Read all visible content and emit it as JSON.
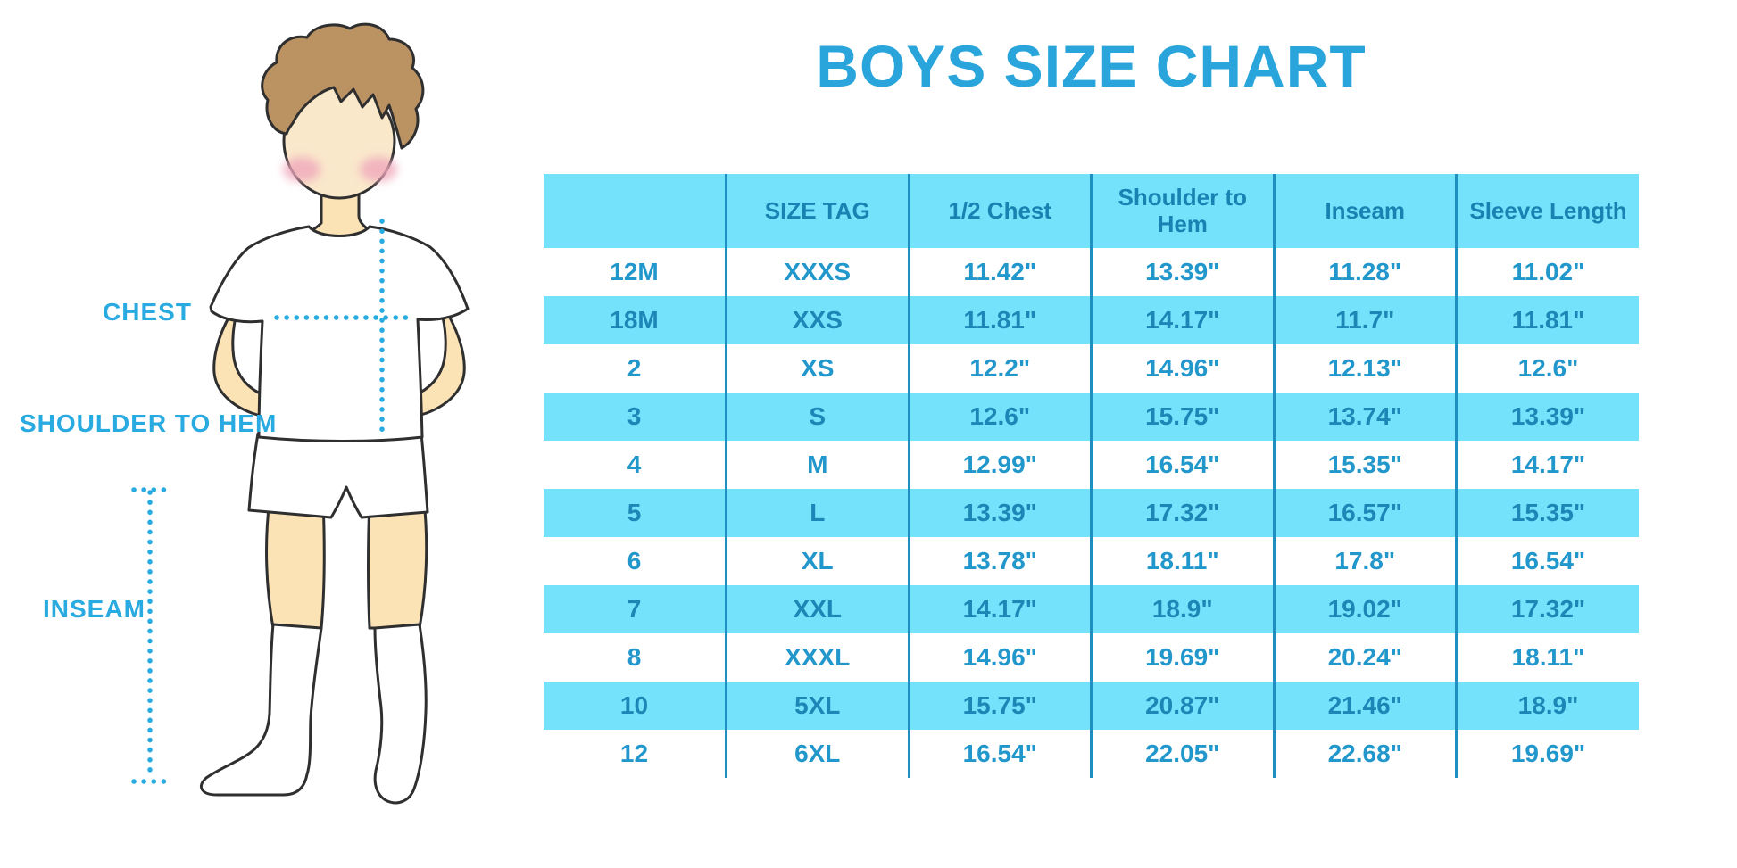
{
  "title": "BOYS SIZE CHART",
  "figure": {
    "labels": {
      "chest": "CHEST",
      "shoulder_to_hem": "SHOULDER TO HEM",
      "inseam": "INSEAM"
    }
  },
  "table": {
    "headers": [
      "",
      "SIZE TAG",
      "1/2 Chest",
      "Shoulder to Hem",
      "Inseam",
      "Sleeve Length"
    ],
    "rows": [
      [
        "12M",
        "XXXS",
        "11.42\"",
        "13.39\"",
        "11.28\"",
        "11.02\""
      ],
      [
        "18M",
        "XXS",
        "11.81\"",
        "14.17\"",
        "11.7\"",
        "11.81\""
      ],
      [
        "2",
        "XS",
        "12.2\"",
        "14.96\"",
        "12.13\"",
        "12.6\""
      ],
      [
        "3",
        "S",
        "12.6\"",
        "15.75\"",
        "13.74\"",
        "13.39\""
      ],
      [
        "4",
        "M",
        "12.99\"",
        "16.54\"",
        "15.35\"",
        "14.17\""
      ],
      [
        "5",
        "L",
        "13.39\"",
        "17.32\"",
        "16.57\"",
        "15.35\""
      ],
      [
        "6",
        "XL",
        "13.78\"",
        "18.11\"",
        "17.8\"",
        "16.54\""
      ],
      [
        "7",
        "XXL",
        "14.17\"",
        "18.9\"",
        "19.02\"",
        "17.32\""
      ],
      [
        "8",
        "XXXL",
        "14.96\"",
        "19.69\"",
        "20.24\"",
        "18.11\""
      ],
      [
        "10",
        "5XL",
        "15.75\"",
        "20.87\"",
        "21.46\"",
        "18.9\""
      ],
      [
        "12",
        "6XL",
        "16.54\"",
        "22.05\"",
        "22.68\"",
        "19.69\""
      ]
    ]
  },
  "colors": {
    "accent_blue": "#29ABE2",
    "title_blue": "#2AA5DC",
    "band_cyan": "#74E2FA",
    "grid_line": "#1D8FC0",
    "cell_text": "#2197CB",
    "header_text": "#1A82B2",
    "skin": "#FBE3B5",
    "face": "#FAE8CB",
    "hair": "#BB9262",
    "blush": "#F0A8BC",
    "outline": "#2F2F2F"
  }
}
